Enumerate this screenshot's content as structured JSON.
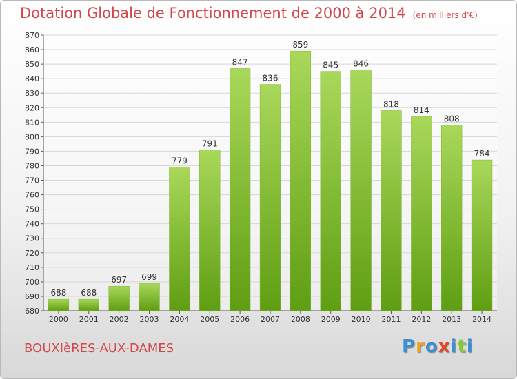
{
  "title": "Dotation Globale de Fonctionnement de 2000 à 2014",
  "unit": "(en milliers d'€)",
  "town": "BOUXIèRES-AUX-DAMES",
  "logo": {
    "letters": [
      "P",
      "r",
      "o",
      "x",
      "i",
      "t",
      "i"
    ],
    "colors": [
      "#3a8fd1",
      "#f0a020",
      "#3a8fd1",
      "#e04a2a",
      "#3a8fd1",
      "#8cc63f",
      "#3a8fd1"
    ]
  },
  "colors": {
    "bar_top": "#a9d85a",
    "bar_bottom": "#5f9e12",
    "title": "#d2474a",
    "grid": "#d7d7d7"
  },
  "chart_data": {
    "type": "bar",
    "title": "Dotation Globale de Fonctionnement de 2000 à 2014",
    "subtitle": "(en milliers d'€)",
    "categories": [
      "2000",
      "2001",
      "2002",
      "2003",
      "2004",
      "2005",
      "2006",
      "2007",
      "2008",
      "2009",
      "2010",
      "2011",
      "2012",
      "2013",
      "2014"
    ],
    "values": [
      688,
      688,
      697,
      699,
      779,
      791,
      847,
      836,
      859,
      845,
      846,
      818,
      814,
      808,
      784
    ],
    "ylim": [
      680,
      870
    ],
    "yticks": [
      680,
      690,
      700,
      710,
      720,
      730,
      740,
      750,
      760,
      770,
      780,
      790,
      800,
      810,
      820,
      830,
      840,
      850,
      860,
      870
    ],
    "grid": true,
    "xlabel": "",
    "ylabel": ""
  }
}
